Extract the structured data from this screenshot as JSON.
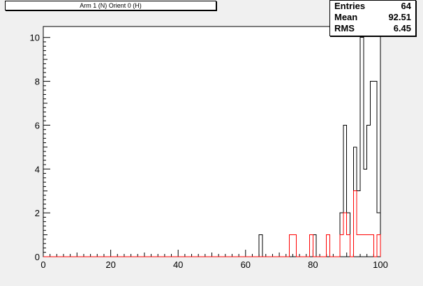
{
  "title": "Arm 1 (N) Orient 0 (H)",
  "stats": [
    {
      "key": "Entries",
      "value": "64"
    },
    {
      "key": "Mean",
      "value": "92.51"
    },
    {
      "key": "RMS",
      "value": "6.45"
    }
  ],
  "colors": {
    "background": "#f0f0f0",
    "frame": "#ffffff",
    "series_black": "#000000",
    "series_red": "#ff0000"
  },
  "chart_data": {
    "type": "histogram",
    "xlim": [
      0,
      100
    ],
    "ylim": [
      0,
      10.5
    ],
    "bin_width": 1,
    "x_ticks": [
      0,
      20,
      40,
      60,
      80,
      100
    ],
    "y_ticks": [
      0,
      2,
      4,
      6,
      8,
      10
    ],
    "x_tick_labels": [
      "0",
      "20",
      "40",
      "60",
      "80",
      "100"
    ],
    "y_tick_labels": [
      "0",
      "2",
      "4",
      "6",
      "8",
      "10"
    ],
    "series": [
      {
        "color": "#000000",
        "bins": [
          {
            "x": 64,
            "y": 1
          },
          {
            "x": 73,
            "y": 1
          },
          {
            "x": 74,
            "y": 1
          },
          {
            "x": 79,
            "y": 1
          },
          {
            "x": 80,
            "y": 1
          },
          {
            "x": 84,
            "y": 1
          },
          {
            "x": 88,
            "y": 2
          },
          {
            "x": 89,
            "y": 6
          },
          {
            "x": 90,
            "y": 2
          },
          {
            "x": 92,
            "y": 5
          },
          {
            "x": 93,
            "y": 3
          },
          {
            "x": 94,
            "y": 10
          },
          {
            "x": 95,
            "y": 4
          },
          {
            "x": 96,
            "y": 6
          },
          {
            "x": 97,
            "y": 8
          },
          {
            "x": 98,
            "y": 8
          },
          {
            "x": 99,
            "y": 2
          }
        ]
      },
      {
        "color": "#ff0000",
        "bins": [
          {
            "x": 73,
            "y": 1
          },
          {
            "x": 74,
            "y": 1
          },
          {
            "x": 79,
            "y": 1
          },
          {
            "x": 84,
            "y": 1
          },
          {
            "x": 88,
            "y": 1
          },
          {
            "x": 89,
            "y": 2
          },
          {
            "x": 90,
            "y": 1
          },
          {
            "x": 92,
            "y": 3
          },
          {
            "x": 93,
            "y": 1
          },
          {
            "x": 94,
            "y": 1
          },
          {
            "x": 95,
            "y": 1
          },
          {
            "x": 96,
            "y": 1
          },
          {
            "x": 97,
            "y": 1
          },
          {
            "x": 99,
            "y": 1
          }
        ]
      }
    ]
  }
}
